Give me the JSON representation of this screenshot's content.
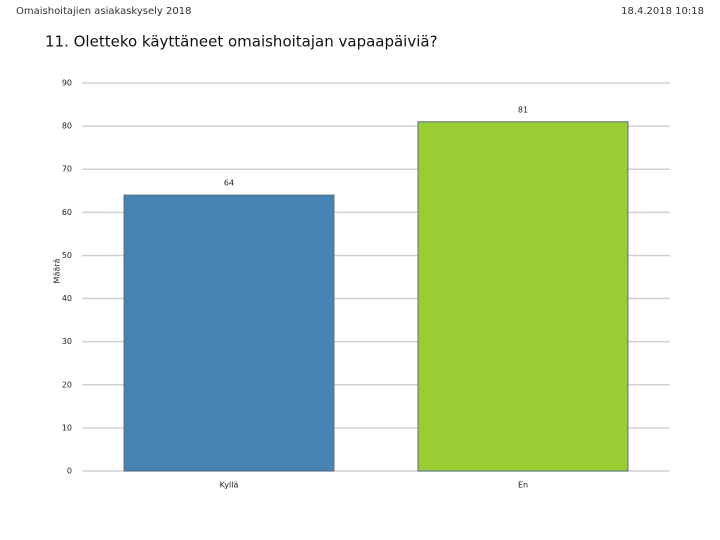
{
  "header": {
    "left": "Omaishoitajien asiakaskysely 2018",
    "right": "18.4.2018 10:18"
  },
  "chart_data": {
    "type": "bar",
    "title": "11. Oletteko käyttäneet omaishoitajan vapaapäiviä?",
    "y_label": "Määrä",
    "categories": [
      "Kyllä",
      "En"
    ],
    "values": [
      64,
      81
    ],
    "colors": [
      "#4682b4",
      "#9acd32"
    ],
    "ylim": [
      0,
      90
    ],
    "yticks": [
      0,
      10,
      20,
      30,
      40,
      50,
      60,
      70,
      80,
      90
    ],
    "grid": true
  }
}
